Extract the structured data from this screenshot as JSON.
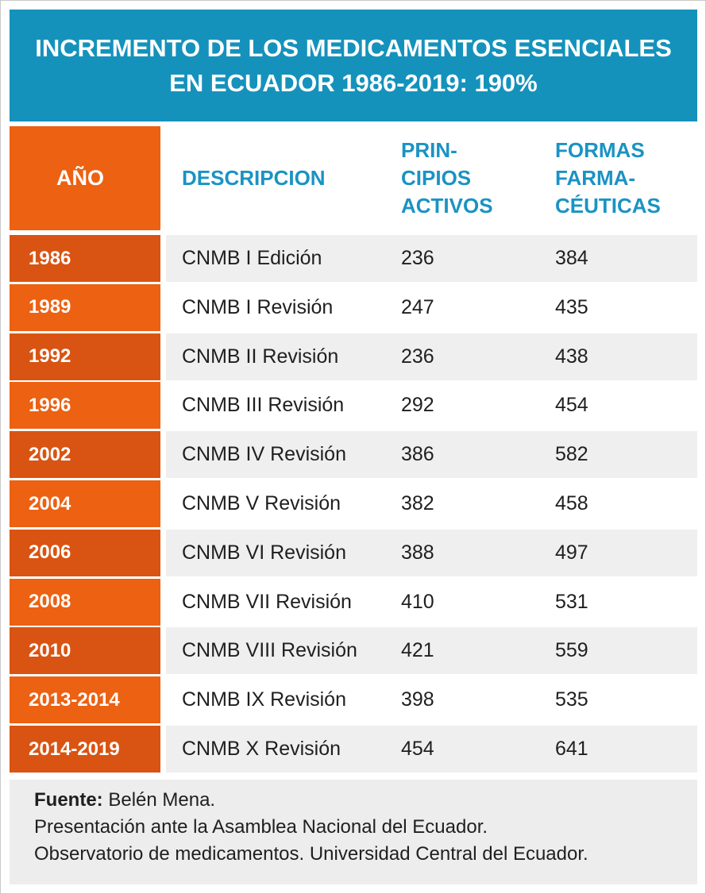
{
  "title": {
    "line1": "INCREMENTO DE LOS  MEDICAMENTOS ESENCIALES",
    "line2": "EN ECUADOR 1986-2019: 190%"
  },
  "colors": {
    "title_bg": "#1592bc",
    "header_text": "#1a93c3",
    "year_dark": "#d95412",
    "year_light": "#ec6112",
    "row_stripe": "#efefef"
  },
  "chart_data": {
    "type": "table",
    "columns": {
      "year": "AÑO",
      "description": "DESCRIPCION",
      "principios": [
        "PRIN-",
        "CIPIOS",
        "ACTIVOS"
      ],
      "formas": [
        "FORMAS",
        "FARMA-",
        "CÉUTICAS"
      ]
    },
    "rows": [
      {
        "year": "1986",
        "description": "CNMB I Edición",
        "principios_activos": 236,
        "formas_farmaceuticas": 384
      },
      {
        "year": "1989",
        "description": "CNMB I Revisión",
        "principios_activos": 247,
        "formas_farmaceuticas": 435
      },
      {
        "year": "1992",
        "description": "CNMB II Revisión",
        "principios_activos": 236,
        "formas_farmaceuticas": 438
      },
      {
        "year": "1996",
        "description": "CNMB III Revisión",
        "principios_activos": 292,
        "formas_farmaceuticas": 454
      },
      {
        "year": "2002",
        "description": "CNMB IV Revisión",
        "principios_activos": 386,
        "formas_farmaceuticas": 582
      },
      {
        "year": "2004",
        "description": "CNMB V Revisión",
        "principios_activos": 382,
        "formas_farmaceuticas": 458
      },
      {
        "year": "2006",
        "description": "CNMB VI Revisión",
        "principios_activos": 388,
        "formas_farmaceuticas": 497
      },
      {
        "year": "2008",
        "description": "CNMB VII Revisión",
        "principios_activos": 410,
        "formas_farmaceuticas": 531
      },
      {
        "year": "2010",
        "description": "CNMB VIII Revisión",
        "principios_activos": 421,
        "formas_farmaceuticas": 559
      },
      {
        "year": "2013-2014",
        "description": "CNMB IX Revisión",
        "principios_activos": 398,
        "formas_farmaceuticas": 535
      },
      {
        "year": "2014-2019",
        "description": "CNMB X Revisión",
        "principios_activos": 454,
        "formas_farmaceuticas": 641
      }
    ]
  },
  "footer": {
    "source_label": "Fuente:",
    "source_value": " Belén Mena.",
    "line2": "Presentación ante la Asamblea Nacional del Ecuador.",
    "line3": "Observatorio de medicamentos. Universidad Central del Ecuador."
  }
}
